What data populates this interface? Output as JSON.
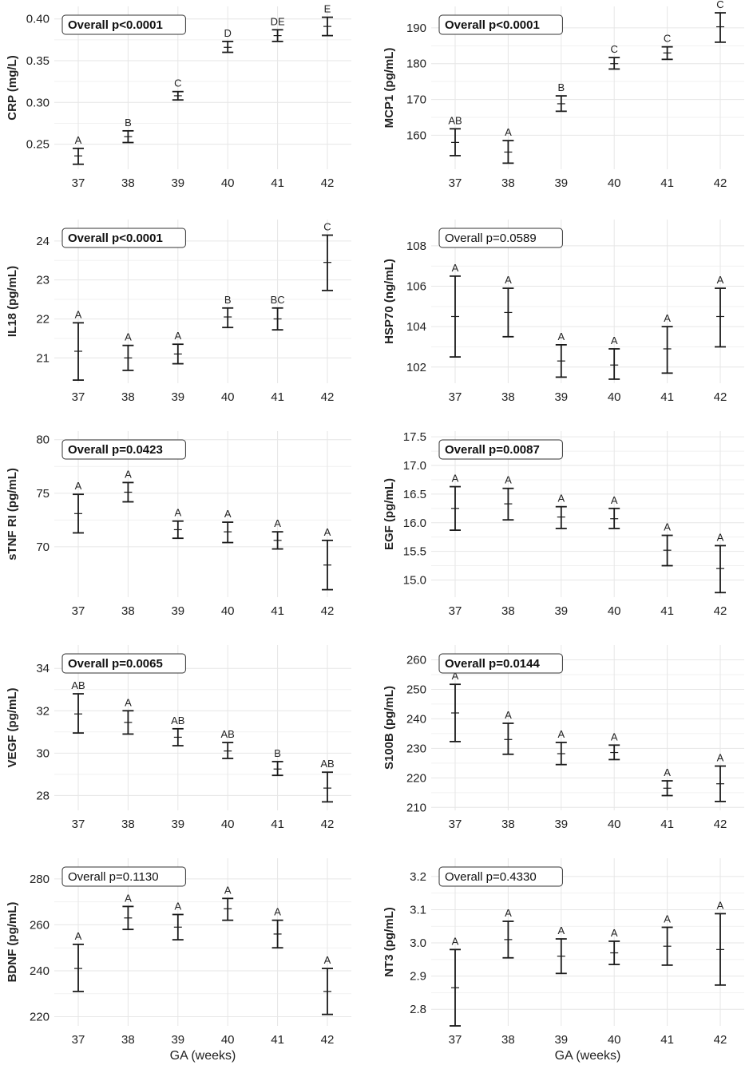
{
  "chart_data": [
    {
      "type": "errorbar",
      "ylabel": "CRP (mg/L)",
      "overall": "Overall p<0.0001",
      "overall_bold": true,
      "x": [
        "37",
        "38",
        "39",
        "40",
        "41",
        "42"
      ],
      "ylim": [
        0.22,
        0.415
      ],
      "yticks": [
        0.25,
        0.3,
        0.35,
        0.4
      ],
      "tick_labels": [
        "0.25",
        "0.30",
        "0.35",
        "0.40"
      ],
      "mean": [
        0.236,
        0.259,
        0.308,
        0.366,
        0.38,
        0.391
      ],
      "lower": [
        0.226,
        0.252,
        0.303,
        0.36,
        0.373,
        0.38
      ],
      "upper": [
        0.245,
        0.266,
        0.313,
        0.373,
        0.387,
        0.402
      ],
      "letters": [
        "A",
        "B",
        "C",
        "D",
        "DE",
        "E"
      ],
      "xlabel": ""
    },
    {
      "type": "errorbar",
      "ylabel": "MCP1 (pg/mL)",
      "overall": "Overall p<0.0001",
      "overall_bold": true,
      "x": [
        "37",
        "38",
        "39",
        "40",
        "41",
        "42"
      ],
      "ylim": [
        150.5,
        196
      ],
      "yticks": [
        160,
        170,
        180,
        190
      ],
      "tick_labels": [
        "160",
        "170",
        "180",
        "190"
      ],
      "mean": [
        158.0,
        155.3,
        168.8,
        180.0,
        183.0,
        190.3
      ],
      "lower": [
        154.3,
        152.2,
        166.7,
        178.5,
        181.2,
        186.0
      ],
      "upper": [
        161.8,
        158.5,
        171.0,
        181.7,
        184.7,
        194.2
      ],
      "letters": [
        "AB",
        "A",
        "B",
        "C",
        "C",
        "C"
      ],
      "xlabel": ""
    },
    {
      "type": "errorbar",
      "ylabel": "IL18 (pg/mL)",
      "overall": "Overall p<0.0001",
      "overall_bold": true,
      "x": [
        "37",
        "38",
        "39",
        "40",
        "41",
        "42"
      ],
      "ylim": [
        20.35,
        24.55
      ],
      "yticks": [
        21,
        22,
        23,
        24
      ],
      "tick_labels": [
        "21",
        "22",
        "23",
        "24"
      ],
      "mean": [
        21.17,
        21.0,
        21.1,
        22.05,
        22.0,
        23.45
      ],
      "lower": [
        20.43,
        20.68,
        20.85,
        21.78,
        21.72,
        22.73
      ],
      "upper": [
        21.9,
        21.32,
        21.35,
        22.28,
        22.28,
        24.15
      ],
      "letters": [
        "A",
        "A",
        "A",
        "B",
        "BC",
        "C"
      ],
      "xlabel": ""
    },
    {
      "type": "errorbar",
      "ylabel": "HSP70 (ng/mL)",
      "overall": "Overall p=0.0589",
      "overall_bold": false,
      "x": [
        "37",
        "38",
        "39",
        "40",
        "41",
        "42"
      ],
      "ylim": [
        101.2,
        109.3
      ],
      "yticks": [
        102,
        104,
        106,
        108
      ],
      "tick_labels": [
        "102",
        "104",
        "106",
        "108"
      ],
      "mean": [
        104.5,
        104.7,
        102.3,
        102.1,
        102.9,
        104.5
      ],
      "lower": [
        102.5,
        103.5,
        101.5,
        101.4,
        101.7,
        103.0
      ],
      "upper": [
        106.5,
        105.9,
        103.1,
        102.9,
        104.0,
        105.9
      ],
      "letters": [
        "A",
        "A",
        "A",
        "A",
        "A",
        "A"
      ],
      "xlabel": ""
    },
    {
      "type": "errorbar",
      "ylabel": "sTNF RI (pg/mL)",
      "overall": "Overall p=0.0423",
      "overall_bold": true,
      "x": [
        "37",
        "38",
        "39",
        "40",
        "41",
        "42"
      ],
      "ylim": [
        65.3,
        80.8
      ],
      "yticks": [
        70,
        75,
        80
      ],
      "tick_labels": [
        "70",
        "75",
        "80"
      ],
      "mean": [
        73.1,
        75.1,
        71.6,
        71.4,
        70.6,
        68.3
      ],
      "lower": [
        71.3,
        74.2,
        70.8,
        70.4,
        69.8,
        66.0
      ],
      "upper": [
        74.9,
        76.0,
        72.4,
        72.3,
        71.4,
        70.6
      ],
      "letters": [
        "A",
        "A",
        "A",
        "A",
        "A",
        "A"
      ],
      "xlabel": ""
    },
    {
      "type": "errorbar",
      "ylabel": "EGF (pg/mL)",
      "overall": "Overall p=0.0087",
      "overall_bold": true,
      "x": [
        "37",
        "38",
        "39",
        "40",
        "41",
        "42"
      ],
      "ylim": [
        14.7,
        17.6
      ],
      "yticks": [
        15.0,
        15.5,
        16.0,
        16.5,
        17.0,
        17.5
      ],
      "tick_labels": [
        "15.0",
        "15.5",
        "16.0",
        "16.5",
        "17.0",
        "17.5"
      ],
      "mean": [
        16.25,
        16.33,
        16.1,
        16.07,
        15.52,
        15.2
      ],
      "lower": [
        15.87,
        16.05,
        15.9,
        15.9,
        15.25,
        14.78
      ],
      "upper": [
        16.63,
        16.6,
        16.28,
        16.25,
        15.78,
        15.6
      ],
      "letters": [
        "A",
        "A",
        "A",
        "A",
        "A",
        "A"
      ],
      "xlabel": ""
    },
    {
      "type": "errorbar",
      "ylabel": "VEGF (pg/mL)",
      "overall": "Overall p=0.0065",
      "overall_bold": true,
      "x": [
        "37",
        "38",
        "39",
        "40",
        "41",
        "42"
      ],
      "ylim": [
        27.3,
        35.1
      ],
      "yticks": [
        28,
        30,
        32,
        34
      ],
      "tick_labels": [
        "28",
        "30",
        "32",
        "34"
      ],
      "mean": [
        31.85,
        31.45,
        30.75,
        30.1,
        29.25,
        28.35
      ],
      "lower": [
        30.95,
        30.9,
        30.35,
        29.75,
        28.95,
        27.7
      ],
      "upper": [
        32.8,
        32.0,
        31.15,
        30.5,
        29.6,
        29.1
      ],
      "letters": [
        "AB",
        "A",
        "AB",
        "AB",
        "B",
        "AB"
      ],
      "xlabel": ""
    },
    {
      "type": "errorbar",
      "ylabel": "S100B (pg/mL)",
      "overall": "Overall p=0.0144",
      "overall_bold": true,
      "x": [
        "37",
        "38",
        "39",
        "40",
        "41",
        "42"
      ],
      "ylim": [
        209,
        265
      ],
      "yticks": [
        210,
        220,
        230,
        240,
        250,
        260
      ],
      "tick_labels": [
        "210",
        "220",
        "230",
        "240",
        "250",
        "260"
      ],
      "mean": [
        242.0,
        233.0,
        228.2,
        228.6,
        216.5,
        218.0
      ],
      "lower": [
        232.3,
        228.0,
        224.5,
        226.2,
        214.0,
        212.0
      ],
      "upper": [
        251.7,
        238.5,
        232.0,
        231.1,
        219.0,
        224.0
      ],
      "letters": [
        "A",
        "A",
        "A",
        "A",
        "A",
        "A"
      ],
      "xlabel": ""
    },
    {
      "type": "errorbar",
      "ylabel": "BDNF (pg/mL)",
      "overall": "Overall p=0.1130",
      "overall_bold": false,
      "x": [
        "37",
        "38",
        "39",
        "40",
        "41",
        "42"
      ],
      "ylim": [
        216,
        289
      ],
      "yticks": [
        220,
        240,
        260,
        280
      ],
      "tick_labels": [
        "220",
        "240",
        "260",
        "280"
      ],
      "mean": [
        241.0,
        263.0,
        259.0,
        267.0,
        256.0,
        231.0
      ],
      "lower": [
        231.0,
        258.0,
        253.5,
        262.0,
        250.0,
        221.0
      ],
      "upper": [
        251.5,
        268.0,
        264.5,
        271.5,
        262.0,
        241.0
      ],
      "letters": [
        "A",
        "A",
        "A",
        "A",
        "A",
        "A"
      ],
      "xlabel": "GA (weeks)"
    },
    {
      "type": "errorbar",
      "ylabel": "NT3 (pg/mL)",
      "overall": "Overall p=0.4330",
      "overall_bold": false,
      "x": [
        "37",
        "38",
        "39",
        "40",
        "41",
        "42"
      ],
      "ylim": [
        2.75,
        3.255
      ],
      "yticks": [
        2.8,
        2.9,
        3.0,
        3.1,
        3.2
      ],
      "tick_labels": [
        "2.8",
        "2.9",
        "3.0",
        "3.1",
        "3.2"
      ],
      "mean": [
        2.865,
        3.01,
        2.96,
        2.97,
        2.99,
        2.98
      ],
      "lower": [
        2.75,
        2.955,
        2.908,
        2.935,
        2.933,
        2.873
      ],
      "upper": [
        2.98,
        3.065,
        3.012,
        3.005,
        3.047,
        3.088
      ],
      "letters": [
        "A",
        "A",
        "A",
        "A",
        "A",
        "A"
      ],
      "xlabel": "GA (weeks)"
    }
  ],
  "colors": {
    "grid": "#e6e6e6",
    "bar": "#1a1a1a",
    "text": "#222222",
    "box_border": "#333333"
  }
}
